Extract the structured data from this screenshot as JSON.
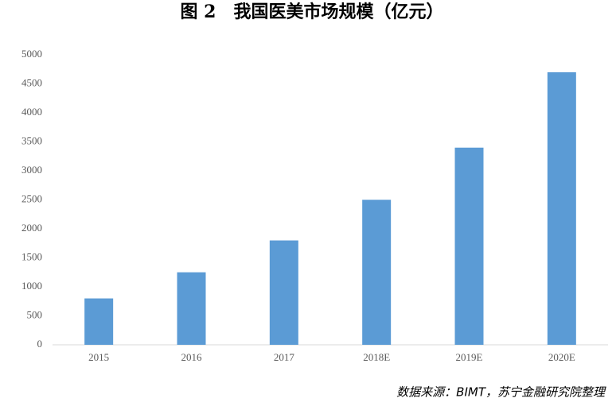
{
  "chart_data": {
    "type": "bar",
    "title": "图 2　我国医美市场规模（亿元）",
    "categories": [
      "2015",
      "2016",
      "2017",
      "2018E",
      "2019E",
      "2020E"
    ],
    "values": [
      800,
      1250,
      1800,
      2500,
      3400,
      4700
    ],
    "color": "#5b9bd5",
    "ylim": [
      0,
      5000
    ],
    "yticks": [
      0,
      500,
      1000,
      1500,
      2000,
      2500,
      3000,
      3500,
      4000,
      4500,
      5000
    ],
    "grid": false,
    "source": "数据来源：BIMT，苏宁金融研究院整理"
  }
}
